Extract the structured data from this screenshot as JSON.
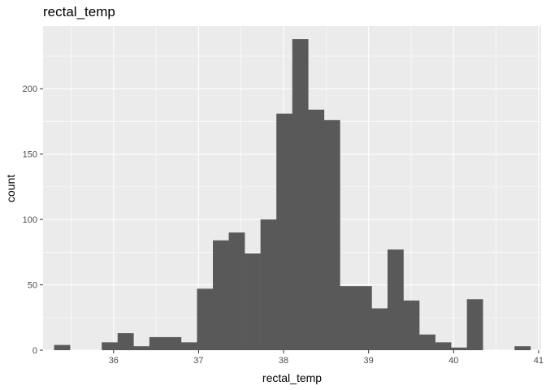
{
  "chart_data": {
    "type": "bar",
    "title": "rectal_temp",
    "xlabel": "rectal_temp",
    "ylabel": "count",
    "xlim": [
      35.17,
      41.03
    ],
    "ylim": [
      0,
      248
    ],
    "x_ticks": [
      36,
      37,
      38,
      39,
      40,
      41
    ],
    "y_ticks": [
      0,
      50,
      100,
      150,
      200
    ],
    "grid": true,
    "bin_width": 0.1868,
    "bins": [
      {
        "x_start": 35.3,
        "x_end": 35.4868,
        "count": 4
      },
      {
        "x_start": 35.4868,
        "x_end": 35.6736,
        "count": 0
      },
      {
        "x_start": 35.6736,
        "x_end": 35.8604,
        "count": 0
      },
      {
        "x_start": 35.8604,
        "x_end": 36.0472,
        "count": 6
      },
      {
        "x_start": 36.0472,
        "x_end": 36.234,
        "count": 13
      },
      {
        "x_start": 36.234,
        "x_end": 36.4208,
        "count": 3
      },
      {
        "x_start": 36.4208,
        "x_end": 36.6076,
        "count": 10
      },
      {
        "x_start": 36.6076,
        "x_end": 36.7944,
        "count": 10
      },
      {
        "x_start": 36.7944,
        "x_end": 36.9812,
        "count": 6
      },
      {
        "x_start": 36.9812,
        "x_end": 37.168,
        "count": 47
      },
      {
        "x_start": 37.168,
        "x_end": 37.3548,
        "count": 84
      },
      {
        "x_start": 37.3548,
        "x_end": 37.5416,
        "count": 90
      },
      {
        "x_start": 37.5416,
        "x_end": 37.7284,
        "count": 74
      },
      {
        "x_start": 37.7284,
        "x_end": 37.9152,
        "count": 100
      },
      {
        "x_start": 37.9152,
        "x_end": 38.102,
        "count": 181
      },
      {
        "x_start": 38.102,
        "x_end": 38.2888,
        "count": 238
      },
      {
        "x_start": 38.2888,
        "x_end": 38.4756,
        "count": 184
      },
      {
        "x_start": 38.4756,
        "x_end": 38.6624,
        "count": 176
      },
      {
        "x_start": 38.6624,
        "x_end": 38.8492,
        "count": 49
      },
      {
        "x_start": 38.8492,
        "x_end": 39.036,
        "count": 49
      },
      {
        "x_start": 39.036,
        "x_end": 39.2228,
        "count": 32
      },
      {
        "x_start": 39.2228,
        "x_end": 39.4096,
        "count": 77
      },
      {
        "x_start": 39.4096,
        "x_end": 39.5964,
        "count": 38
      },
      {
        "x_start": 39.5964,
        "x_end": 39.7832,
        "count": 12
      },
      {
        "x_start": 39.7832,
        "x_end": 39.97,
        "count": 6
      },
      {
        "x_start": 39.97,
        "x_end": 40.1568,
        "count": 2
      },
      {
        "x_start": 40.1568,
        "x_end": 40.3436,
        "count": 39
      },
      {
        "x_start": 40.3436,
        "x_end": 40.5304,
        "count": 0
      },
      {
        "x_start": 40.5304,
        "x_end": 40.7172,
        "count": 0
      },
      {
        "x_start": 40.7172,
        "x_end": 40.904,
        "count": 3
      }
    ],
    "colors": {
      "panel": "#ebebeb",
      "grid_major": "#ffffff",
      "bar_fill": "#595959",
      "tick": "#333333"
    }
  }
}
